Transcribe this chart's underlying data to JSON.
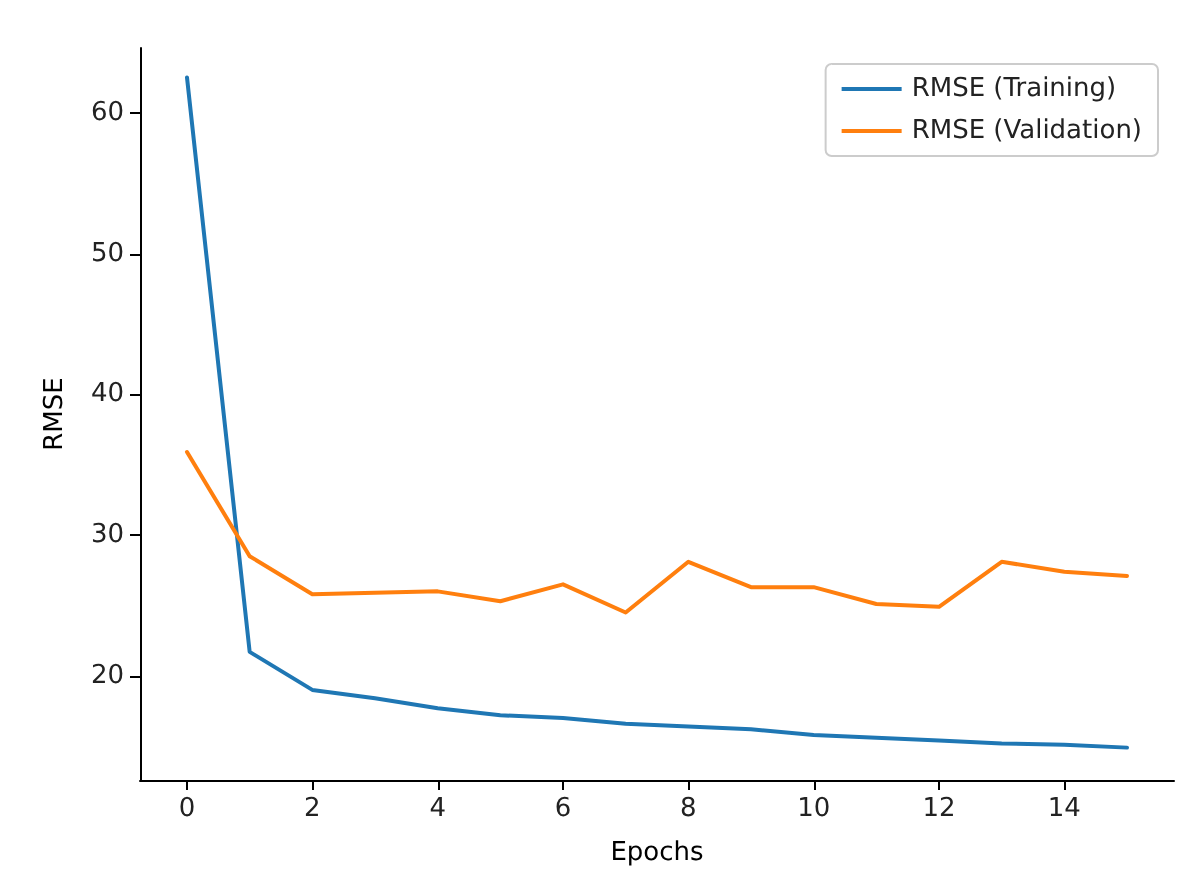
{
  "chart_data": {
    "type": "line",
    "xlabel": "Epochs",
    "ylabel": "RMSE",
    "x": [
      0,
      1,
      2,
      3,
      4,
      5,
      6,
      7,
      8,
      9,
      10,
      11,
      12,
      13,
      14,
      15
    ],
    "series": [
      {
        "name": "RMSE (Training)",
        "color": "#1f77b4",
        "values": [
          62.5,
          21.7,
          19.0,
          18.4,
          17.7,
          17.2,
          17.0,
          16.6,
          16.4,
          16.2,
          15.8,
          15.6,
          15.4,
          15.2,
          15.1,
          14.9
        ]
      },
      {
        "name": "RMSE (Validation)",
        "color": "#ff7f0e",
        "values": [
          35.9,
          28.5,
          25.8,
          25.9,
          26.0,
          25.3,
          26.5,
          24.5,
          28.1,
          26.3,
          26.3,
          25.1,
          24.9,
          28.1,
          27.4,
          27.1
        ]
      }
    ],
    "xlim": [
      -0.75,
      15.75
    ],
    "xticks": [
      0,
      2,
      4,
      6,
      8,
      10,
      12,
      14
    ],
    "ylim": [
      12.6,
      64.6
    ],
    "yticks": [
      20,
      30,
      40,
      50,
      60
    ],
    "grid": false,
    "legend": "top right",
    "marker": "none",
    "line_style": "solid"
  }
}
